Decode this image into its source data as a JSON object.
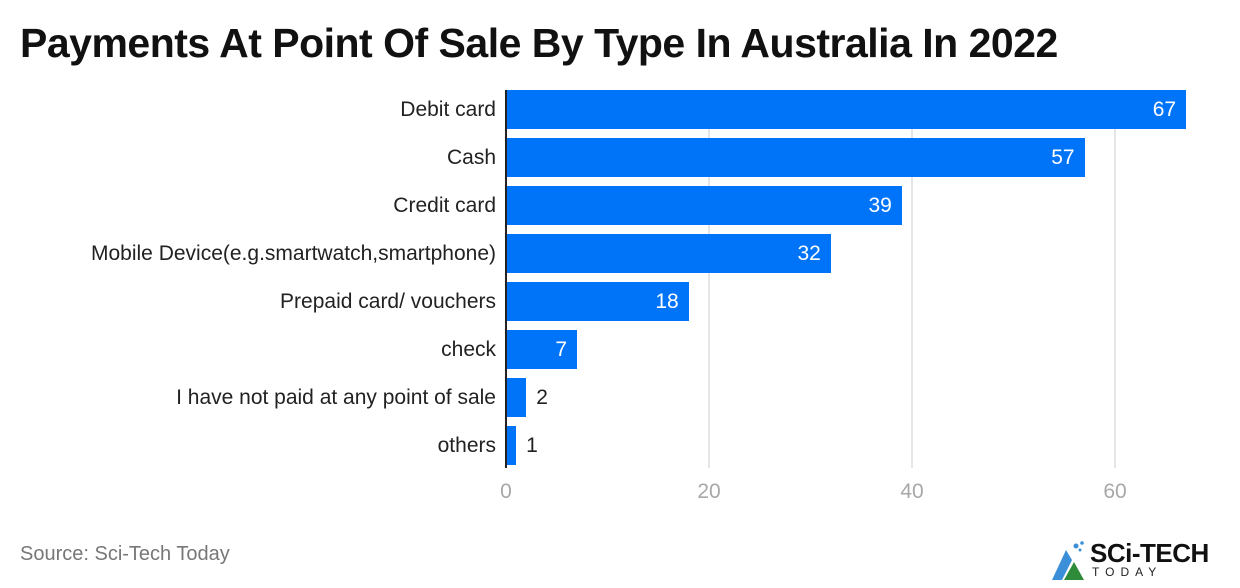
{
  "header": {
    "title": "Payments At Point Of Sale By Type In Australia In 2022"
  },
  "footer": {
    "source": "Source: Sci-Tech Today",
    "logo_main": "SCi-TECH",
    "logo_sub": "TODAY"
  },
  "colors": {
    "bar": "#0074f9",
    "grid": "#e6e6e6",
    "tick": "#a8a8a8"
  },
  "chart_data": {
    "type": "bar",
    "orientation": "horizontal",
    "title": "Payments At Point Of Sale By Type In Australia In 2022",
    "xlabel": "",
    "ylabel": "",
    "categories": [
      "Debit card",
      "Cash",
      "Credit card",
      "Mobile Device(e.g.smartwatch,smartphone)",
      "Prepaid card/ vouchers",
      "check",
      "I have not paid at any point of sale",
      "others"
    ],
    "values": [
      67,
      57,
      39,
      32,
      18,
      7,
      2,
      1
    ],
    "xlim": [
      0,
      70
    ],
    "xticks": [
      0,
      20,
      40,
      60
    ],
    "grid": true,
    "legend": null,
    "source": "Sci-Tech Today"
  }
}
